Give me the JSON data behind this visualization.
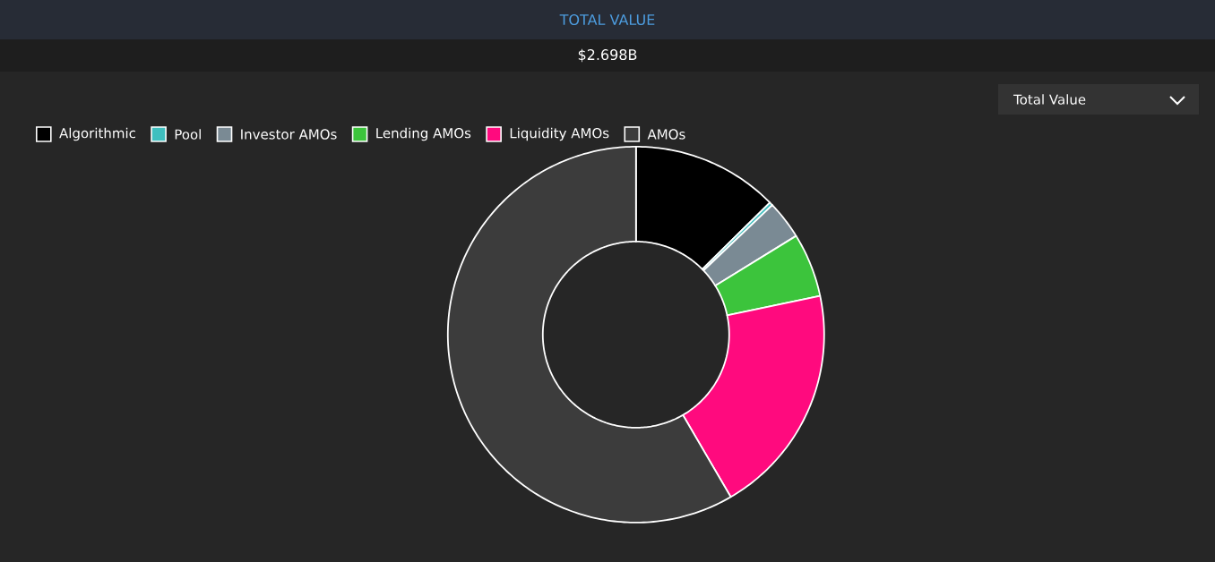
{
  "chart_data": {
    "type": "donut",
    "title": "TOTAL VALUE",
    "subtitle": "$2.698B",
    "categories": [
      "Algorithmic",
      "Pool",
      "Investor AMOs",
      "Lending AMOs",
      "Liquidity AMOs",
      "AMOs"
    ],
    "values": [
      12.6,
      0.3,
      3.3,
      5.5,
      19.9,
      58.4
    ],
    "colors": [
      "#000000",
      "#3fbfbf",
      "#7a8a94",
      "#3cc43c",
      "#ff0a7e",
      "#3c3c3c"
    ],
    "legend": "top left",
    "annotations": [
      "Total Value"
    ]
  }
}
